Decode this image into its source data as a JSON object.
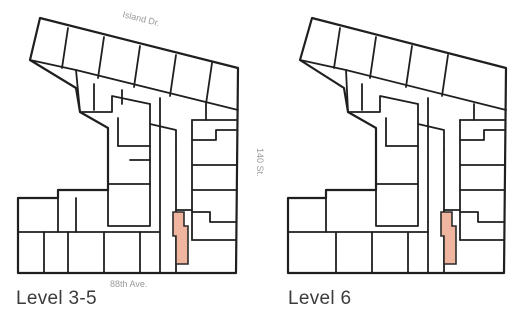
{
  "plans": [
    {
      "caption": "Level 3-5",
      "streets": {
        "north": "Island Dr.",
        "south": "88th Ave.",
        "east": "140 St."
      }
    },
    {
      "caption": "Level 6"
    }
  ],
  "colors": {
    "highlight_unit": "#efb59e",
    "walls": "#1f1f1f",
    "street_label": "#9a9a9a",
    "caption": "#3b3b3b"
  }
}
